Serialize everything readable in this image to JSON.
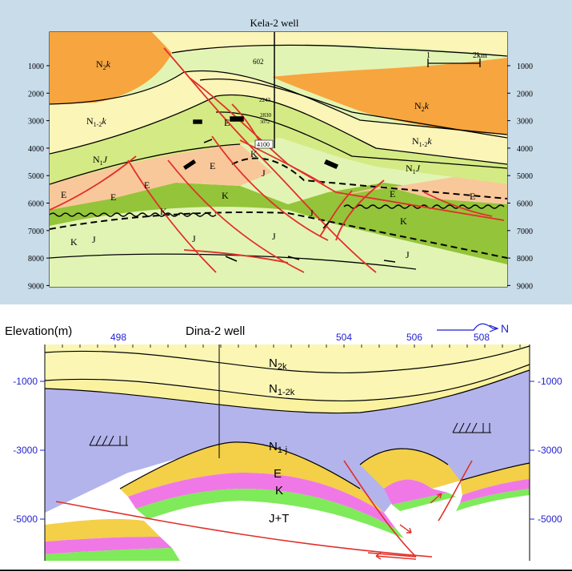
{
  "top_section": {
    "well_name": "Kela-2 well",
    "scale_bar": {
      "start": "1",
      "end": "2km"
    },
    "depth_ticks": [
      "1000",
      "2000",
      "3000",
      "4000",
      "5000",
      "6000",
      "7000",
      "8000",
      "9000"
    ],
    "well_depth_marks": [
      "602",
      "2243",
      "2830",
      "3072",
      "4100"
    ],
    "unit_labels": [
      {
        "id": "n2k-left",
        "base": "N",
        "sub": "2",
        "suffix": "k"
      },
      {
        "id": "n2k-right",
        "base": "N",
        "sub": "2",
        "suffix": "k"
      },
      {
        "id": "n12k-left",
        "base": "N",
        "sub": "1-2",
        "suffix": "k"
      },
      {
        "id": "n12k-right",
        "base": "N",
        "sub": "1-2",
        "suffix": "k"
      },
      {
        "id": "n1j-left",
        "base": "N",
        "sub": "1",
        "suffix": "J"
      },
      {
        "id": "n1j-right",
        "base": "N",
        "sub": "1",
        "suffix": "J"
      }
    ],
    "simple_labels": [
      "E",
      "E",
      "E",
      "E",
      "E",
      "E",
      "E",
      "K",
      "K",
      "K",
      "K",
      "K",
      "J",
      "J",
      "J",
      "J",
      "J",
      "J"
    ]
  },
  "bottom_section": {
    "elevation_label": "Elevation(m)",
    "well_name": "Dina-2 well",
    "north_label": "N",
    "x_ticks": [
      "498",
      "504",
      "506",
      "508"
    ],
    "y_ticks": [
      "-1000",
      "-3000",
      "-5000"
    ],
    "unit_labels": [
      {
        "id": "n2k",
        "base": "N",
        "sub": "2k"
      },
      {
        "id": "n12k",
        "base": "N",
        "sub": "1-2k"
      },
      {
        "id": "n1j",
        "base": "N",
        "sub": "1-j"
      }
    ],
    "simple_labels": [
      "E",
      "K",
      "J+T"
    ]
  },
  "colors": {
    "background_frame": "#c9dcea",
    "n2k_orange": "#f7a53e",
    "n12k_cream": "#fbf5b8",
    "n1j_green": "#d4ea84",
    "e_peach": "#f9c89a",
    "k_green": "#94c43a",
    "j_light_green": "#e2f4b4",
    "fault_red": "#e0302a",
    "bottom_purple": "#b4b4ec",
    "bottom_n2k": "#fbf6b4",
    "bottom_n12k": "#fbf2a0",
    "e_yellow": "#f4cf48",
    "k_magenta": "#f078e6",
    "k_lime": "#7fea5a",
    "axis_blue": "#1f1fd0"
  }
}
